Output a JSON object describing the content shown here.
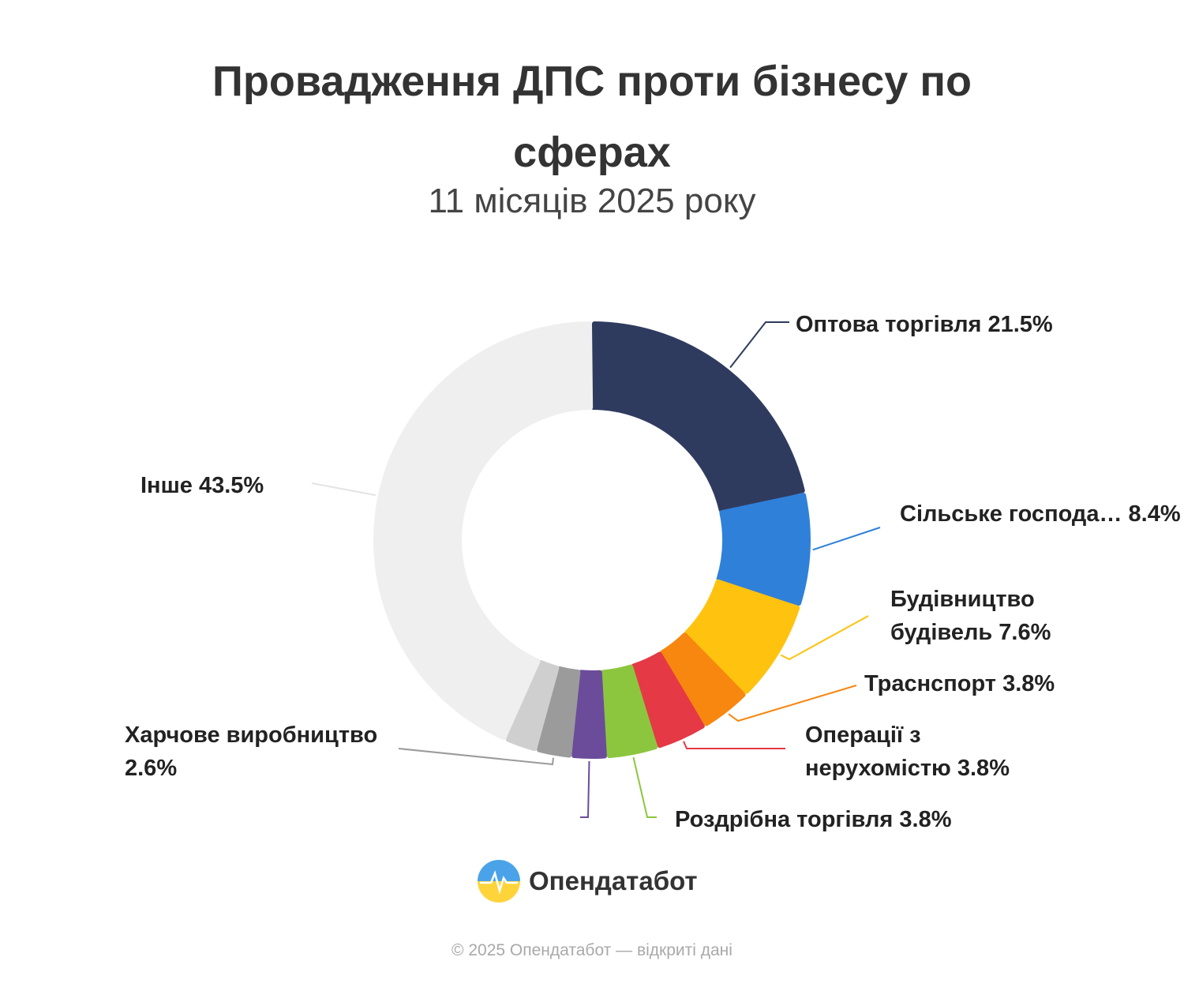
{
  "header": {
    "title": "Провадження ДПС проти бізнесу по сферах",
    "subtitle": "11 місяців 2025 року"
  },
  "chart_data": {
    "type": "donut",
    "categories": [
      "Оптова торгівля",
      "Сільське господа…",
      "Будівництво будівель",
      "Траснспорт",
      "Операції з нерухомістю",
      "Роздрібна торгівля",
      null,
      "Харчове виробництво",
      null,
      "Інше"
    ],
    "values": [
      21.5,
      8.4,
      7.6,
      3.8,
      3.8,
      3.8,
      2.6,
      2.6,
      2.4,
      43.5
    ],
    "value_labels": [
      "21.5%",
      "8.4%",
      "7.6%",
      "3.8%",
      "3.8%",
      "3.8%",
      null,
      "2.6%",
      null,
      "43.5%"
    ],
    "colors": [
      "#2f3b5e",
      "#2f80d9",
      "#ffc20e",
      "#f7870f",
      "#e53945",
      "#8cc63f",
      "#6b4c9a",
      "#9b9b9b",
      "#cfcfcf",
      "#efefef"
    ]
  },
  "logo": {
    "text": "Опендатабот"
  },
  "footer": {
    "text": "© 2025 Опендатабот — відкриті дані"
  }
}
